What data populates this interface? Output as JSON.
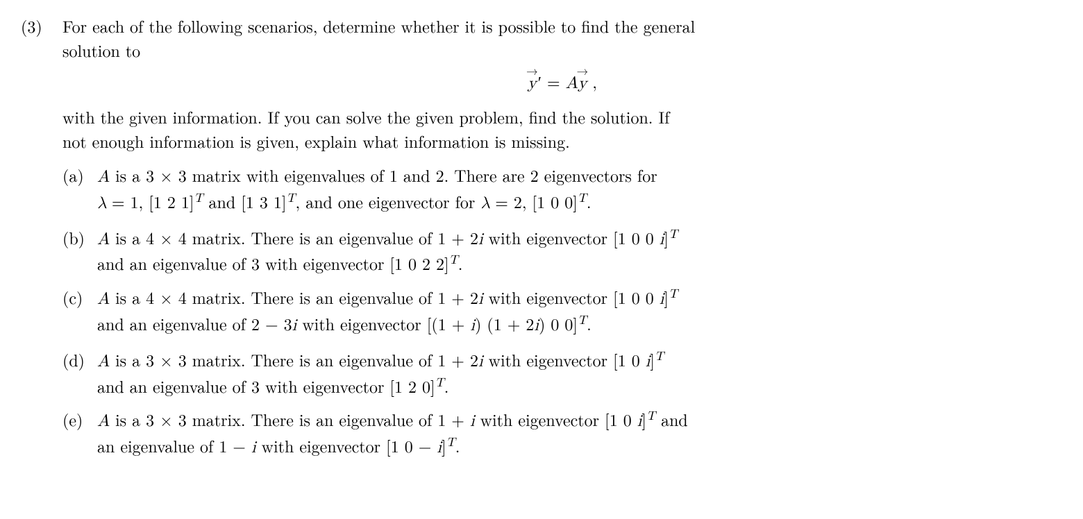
{
  "problem": {
    "number": "(3)",
    "intro_line1": "For each of the following scenarios, determine whether it is possible to find the general",
    "intro_line2": "solution to",
    "intro_line3": "with the given information.  If you can solve the given problem, find the solution.  If",
    "intro_line4": "not enough information is given, explain what information is missing.",
    "equation": {
      "y": "y",
      "prime": "′",
      "eq": " = ",
      "A": "A",
      "y2": "y",
      "comma": " ,"
    },
    "parts": {
      "a": {
        "label": "(a)",
        "t1": " is a 3 × 3 matrix with eigenvalues of 1 and 2.  There are 2 eigenvectors for",
        "t2": " = 1, [1 2 1]",
        "t3": " and [1 3 1]",
        "t4": ", and one eigenvector for ",
        "t5": " = 2, [1 0 0]",
        "t6": ".",
        "A": "A",
        "T": "T",
        "lambda": "λ"
      },
      "b": {
        "label": "(b)",
        "t1": " is a 4 × 4 matrix. There is an eigenvalue of 1 + 2",
        "t2": " with eigenvector [1 0 0 ",
        "t3": "]",
        "t4": "and an eigenvalue of 3 with eigenvector [1 0 2 2]",
        "t5": ".",
        "A": "A",
        "i": "i",
        "T": "T"
      },
      "c": {
        "label": "(c)",
        "t1": " is a 4 × 4 matrix. There is an eigenvalue of 1 + 2",
        "t2": " with eigenvector [1 0 0 ",
        "t3": "]",
        "t4": "and an eigenvalue of 2 − 3",
        "t5": " with eigenvector [(1 + ",
        "t6": ") (1 + 2",
        "t7": ") 0 0]",
        "t8": ".",
        "A": "A",
        "i": "i",
        "T": "T"
      },
      "d": {
        "label": "(d)",
        "t1": " is a 3 × 3 matrix.  There is an eigenvalue of 1 + 2",
        "t2": " with eigenvector [1 0 ",
        "t3": "]",
        "t4": "and an eigenvalue of 3 with eigenvector [1 2 0]",
        "t5": ".",
        "A": "A",
        "i": "i",
        "T": "T"
      },
      "e": {
        "label": "(e)",
        "t1": " is a 3 × 3 matrix. There is an eigenvalue of 1 + ",
        "t2": " with eigenvector [1 0 ",
        "t3": "]",
        "t4": " and",
        "t5": "an eigenvalue of 1 − ",
        "t6": " with eigenvector [1 0  − ",
        "t7": "]",
        "t8": ".",
        "A": "A",
        "i": "i",
        "T": "T"
      }
    }
  }
}
